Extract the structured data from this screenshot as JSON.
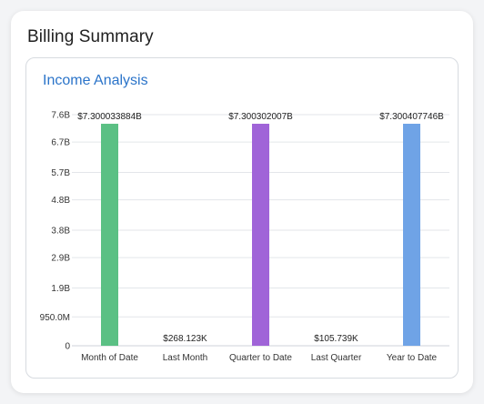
{
  "card": {
    "title": "Billing Summary"
  },
  "chart_data": {
    "type": "bar",
    "title": "Income Analysis",
    "xlabel": "",
    "ylabel": "",
    "categories": [
      "Month of Date",
      "Last Month",
      "Quarter to Date",
      "Last Quarter",
      "Year to Date"
    ],
    "values": [
      7300033884,
      268123,
      7300302007,
      105739,
      7300407746
    ],
    "data_labels": [
      "$7.300033884B",
      "$268.123K",
      "$7.300302007B",
      "$105.739K",
      "$7.300407746B"
    ],
    "bar_colors": [
      "#5bc084",
      "#5bc084",
      "#a064d8",
      "#a064d8",
      "#6fa3e6"
    ],
    "y_ticks": [
      0,
      950000000,
      1900000000,
      2900000000,
      3800000000,
      4800000000,
      5700000000,
      6700000000,
      7600000000
    ],
    "y_tick_labels": [
      "0",
      "950.0M",
      "1.9B",
      "2.9B",
      "3.8B",
      "4.8B",
      "5.7B",
      "6.7B",
      "7.6B"
    ],
    "ylim": [
      0,
      7600000000
    ],
    "grid": true
  }
}
